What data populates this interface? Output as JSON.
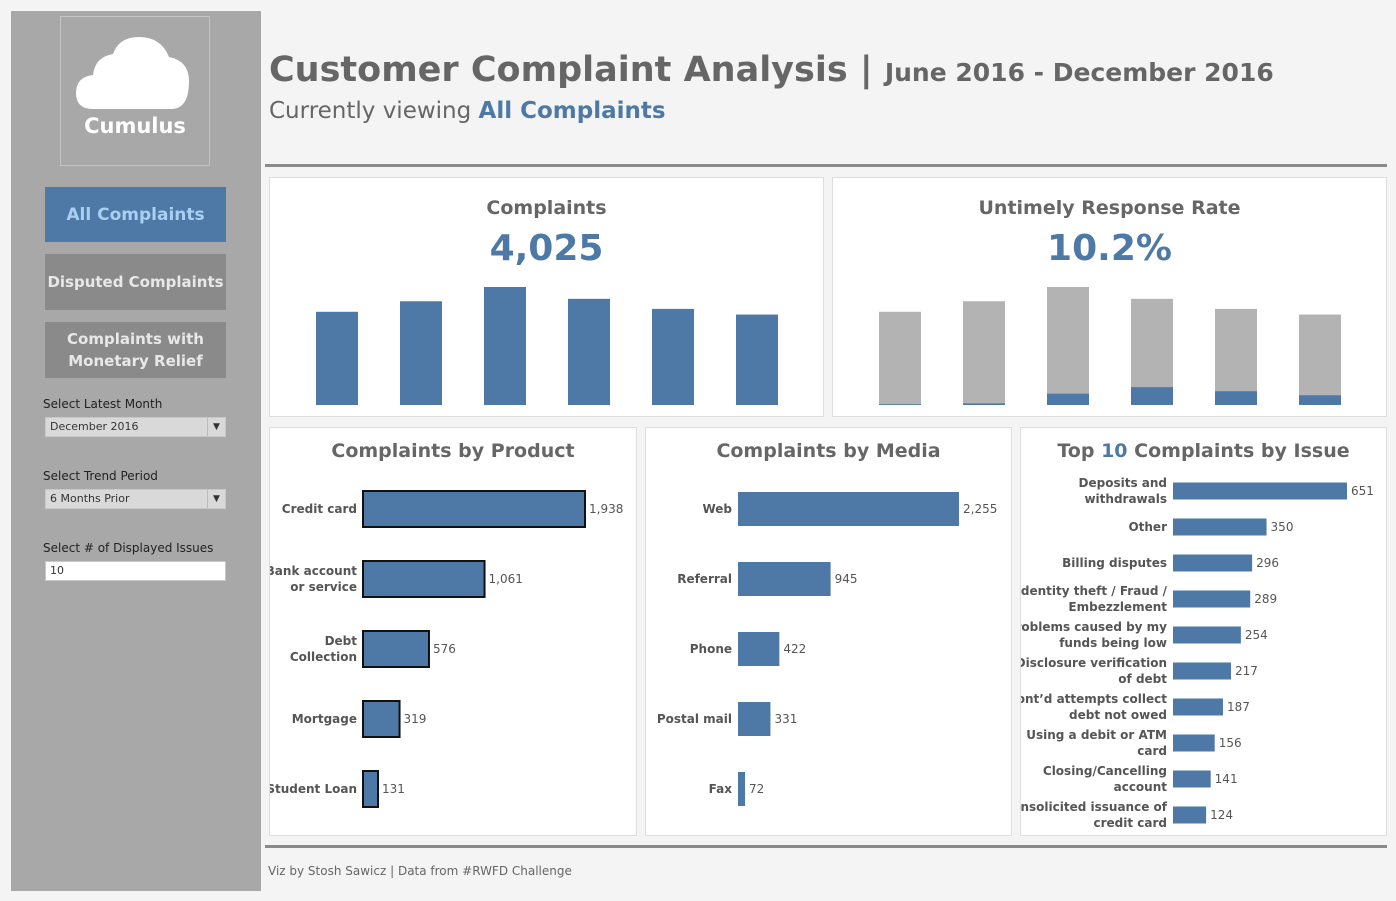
{
  "sidebar": {
    "logo_text": "Cumulus",
    "buttons": [
      "All Complaints",
      "Disputed Complaints",
      "Complaints with Monetary Relief"
    ],
    "latest_month_label": "Select Latest Month",
    "latest_month_value": "December 2016",
    "trend_period_label": "Select Trend Period",
    "trend_period_value": "6 Months Prior",
    "issues_label": "Select # of Displayed Issues",
    "issues_value": "10"
  },
  "header": {
    "title": "Customer Complaint Analysis",
    "separator": " | ",
    "date_range": "June 2016 - December 2016",
    "viewing_prefix": "Currently viewing ",
    "viewing_value": "All Complaints"
  },
  "footer": "Viz by Stosh Sawicz | Data from #RWFD Challenge",
  "colors": {
    "accent": "#4e79a7",
    "grey_bar": "#b3b3b3",
    "text": "#666666"
  },
  "chart_data": [
    {
      "type": "bar",
      "title": "Complaints",
      "kpi": "4,025",
      "values": [
        575,
        640,
        728,
        655,
        593,
        558
      ]
    },
    {
      "type": "bar",
      "title": "Untimely Response Rate",
      "kpi": "10.2%",
      "series": [
        {
          "values": [
            575,
            640,
            728,
            655,
            593,
            558
          ]
        },
        {
          "values": [
            5,
            10,
            70,
            110,
            85,
            60
          ]
        }
      ]
    },
    {
      "type": "bar",
      "title": "Complaints by Product",
      "categories": [
        "Credit card",
        "Bank account or service",
        "Debt Collection",
        "Mortgage",
        "Student Loan"
      ],
      "values": [
        1938,
        1061,
        576,
        319,
        131
      ],
      "value_labels": [
        "1,938",
        "1,061",
        "576",
        "319",
        "131"
      ]
    },
    {
      "type": "bar",
      "title": "Complaints by Media",
      "categories": [
        "Web",
        "Referral",
        "Phone",
        "Postal mail",
        "Fax"
      ],
      "values": [
        2255,
        945,
        422,
        331,
        72
      ],
      "value_labels": [
        "2,255",
        "945",
        "422",
        "331",
        "72"
      ]
    },
    {
      "type": "bar",
      "title_prefix": "Top ",
      "title_number": "10",
      "title_suffix": " Complaints by Issue",
      "categories": [
        "Deposits and withdrawals",
        "Other",
        "Billing disputes",
        "Identity theft / Fraud / Embezzlement",
        "Problems caused by my funds being low",
        "Disclosure verification of debt",
        "Cont'd attempts collect debt not owed",
        "Using a debit or ATM card",
        "Closing/Cancelling account",
        "Unsolicited issuance of credit card"
      ],
      "values": [
        651,
        350,
        296,
        289,
        254,
        217,
        187,
        156,
        141,
        124
      ]
    }
  ]
}
